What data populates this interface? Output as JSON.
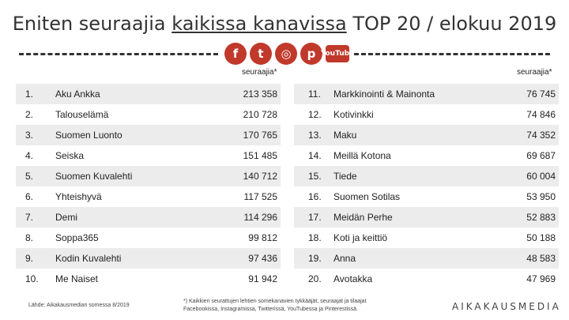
{
  "title": {
    "part1": "Eniten seuraajia ",
    "underlined": "kaikissa kanavissa",
    "part2": " TOP 20 / elokuu 2019"
  },
  "icons": [
    {
      "name": "facebook-icon",
      "glyph": "f",
      "color": "#c0392b"
    },
    {
      "name": "twitter-icon",
      "glyph": "t",
      "color": "#c0392b"
    },
    {
      "name": "instagram-icon",
      "glyph": "◎",
      "color": "#c0392b"
    },
    {
      "name": "pinterest-icon",
      "glyph": "p",
      "color": "#c0392b"
    },
    {
      "name": "youtube-icon",
      "glyph": "YouTube",
      "color": "#c0392b"
    }
  ],
  "column_header": "seuraajia*",
  "left_rows": [
    {
      "rank": "1.",
      "name": "Aku Ankka",
      "value": "213 358"
    },
    {
      "rank": "2.",
      "name": "Talouselämä",
      "value": "210 728"
    },
    {
      "rank": "3.",
      "name": "Suomen Luonto",
      "value": "170 765"
    },
    {
      "rank": "4.",
      "name": "Seiska",
      "value": "151 485"
    },
    {
      "rank": "5.",
      "name": "Suomen Kuvalehti",
      "value": "140 712"
    },
    {
      "rank": "6.",
      "name": "Yhteishyvä",
      "value": "117 525"
    },
    {
      "rank": "7.",
      "name": "Demi",
      "value": "114 296"
    },
    {
      "rank": "8.",
      "name": "Soppa365",
      "value": "99 812"
    },
    {
      "rank": "9.",
      "name": "Kodin Kuvalehti",
      "value": "97 436"
    },
    {
      "rank": "10.",
      "name": "Me Naiset",
      "value": "91 942"
    }
  ],
  "right_rows": [
    {
      "rank": "11.",
      "name": "Markkinointi & Mainonta",
      "value": "76 745"
    },
    {
      "rank": "12.",
      "name": "Kotivinkki",
      "value": "74 846"
    },
    {
      "rank": "13.",
      "name": "Maku",
      "value": "74 352"
    },
    {
      "rank": "14.",
      "name": "Meillä Kotona",
      "value": "69 687"
    },
    {
      "rank": "15.",
      "name": "Tiede",
      "value": "60 004"
    },
    {
      "rank": "16.",
      "name": "Suomen Sotilas",
      "value": "53 950"
    },
    {
      "rank": "17.",
      "name": "Meidän Perhe",
      "value": "52 883"
    },
    {
      "rank": "18.",
      "name": "Koti ja keittiö",
      "value": "50 188"
    },
    {
      "rank": "19.",
      "name": "Anna",
      "value": "48 583"
    },
    {
      "rank": "20.",
      "name": "Avotakka",
      "value": "47 969"
    }
  ],
  "source": "Lähde: Aikakausmedian somessa 8/2019",
  "footnote": "*) Kaikkien seurattujen lehtien somekanavien tykkääjät, seuraajat ja tilaajat Facebookissa, Instagramissa, Twitterissä, YouTubessa ja Pinterestissä.",
  "logo": "AIKAKAUSMEDIA",
  "colors": {
    "shade": "#ececec",
    "icon": "#c0392b"
  }
}
